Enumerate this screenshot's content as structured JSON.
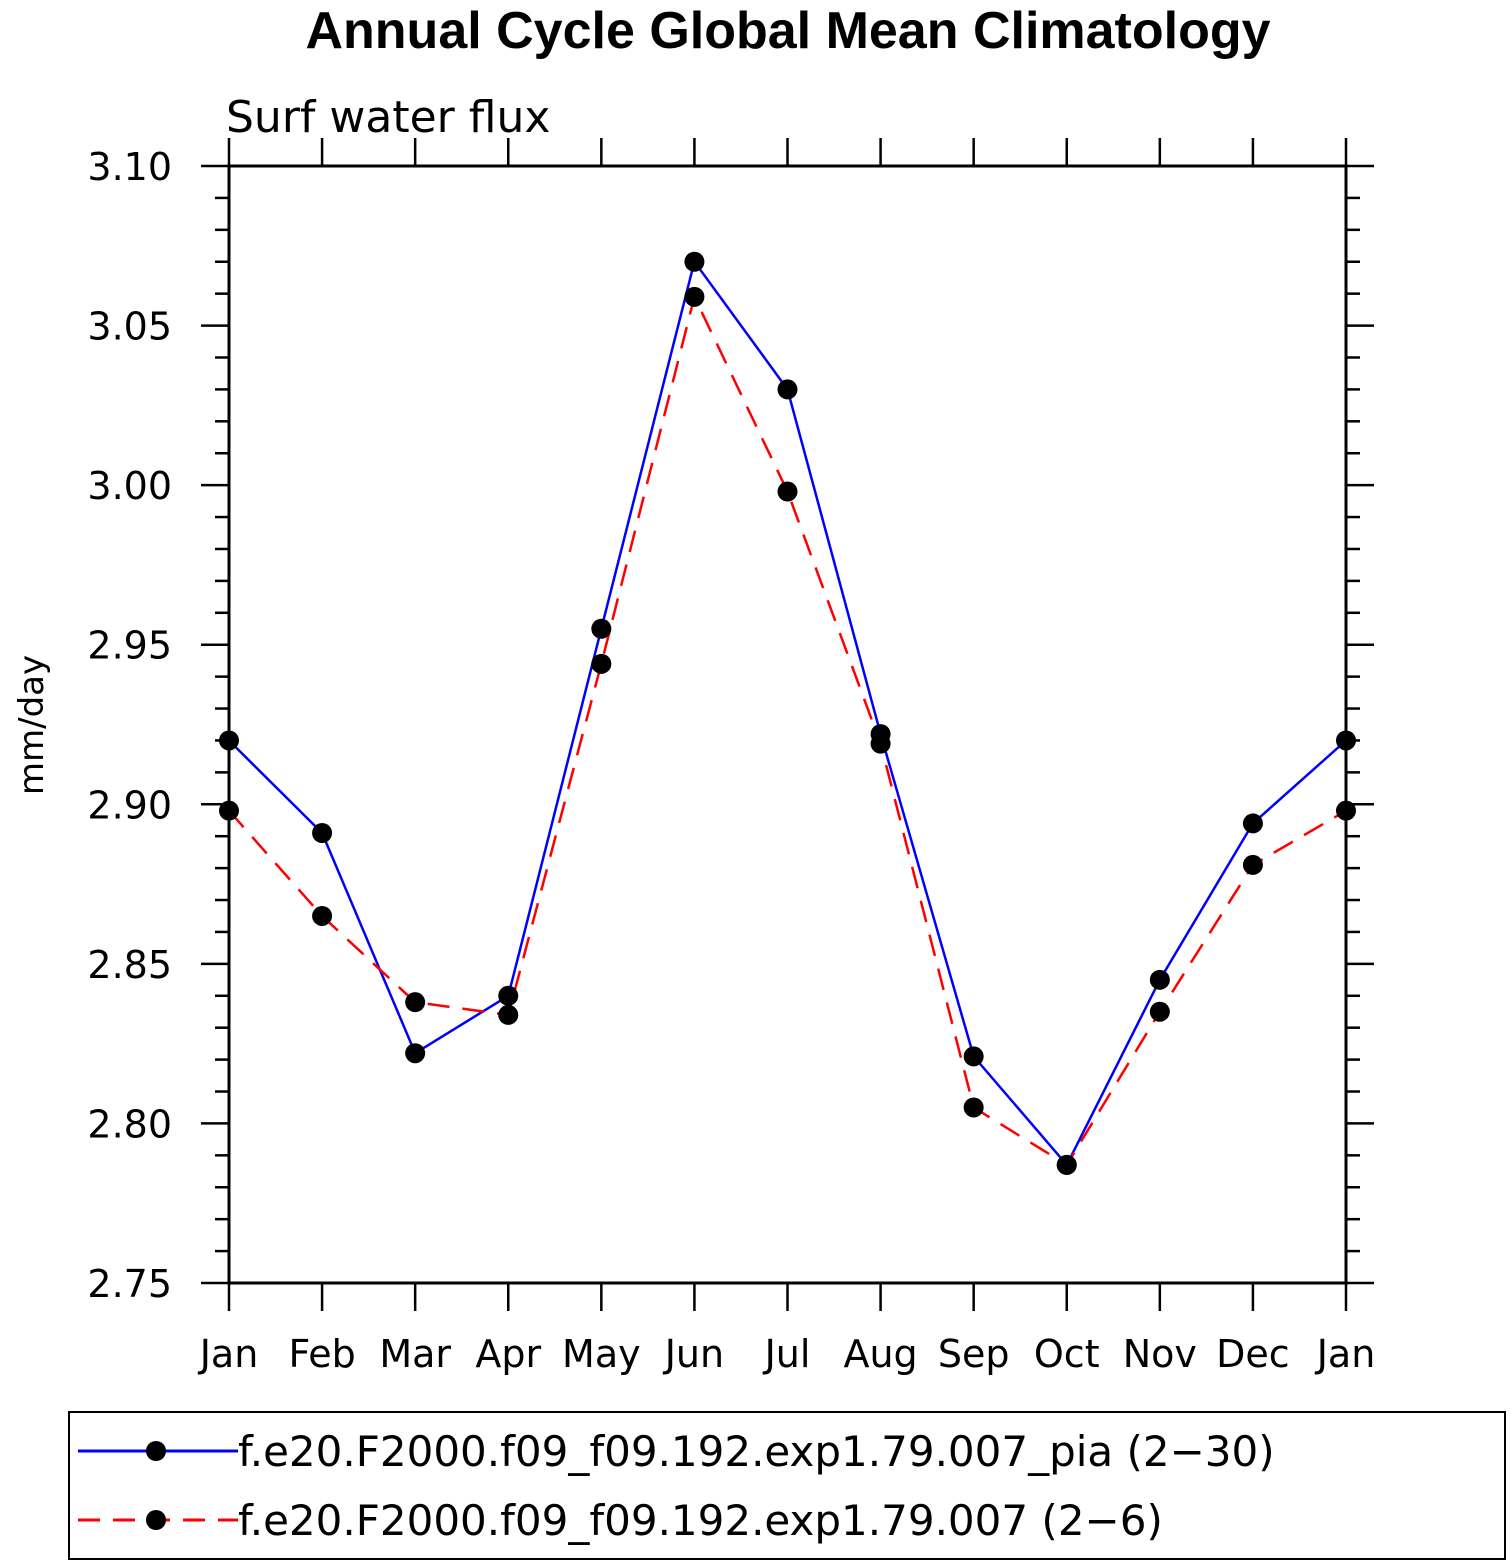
{
  "chart_data": {
    "type": "line",
    "title": "Annual Cycle Global Mean Climatology",
    "subtitle": "Surf water flux",
    "xlabel": "",
    "ylabel": "mm/day",
    "categories": [
      "Jan",
      "Feb",
      "Mar",
      "Apr",
      "May",
      "Jun",
      "Jul",
      "Aug",
      "Sep",
      "Oct",
      "Nov",
      "Dec",
      "Jan"
    ],
    "ylim": [
      2.75,
      3.1
    ],
    "yticks": [
      "2.75",
      "2.80",
      "2.85",
      "2.90",
      "2.95",
      "3.00",
      "3.05",
      "3.10"
    ],
    "grid": false,
    "legend_position": "bottom",
    "series": [
      {
        "name": "f.e20.F2000.f09_f09.192.exp1.79.007_pia (2−30)",
        "color": "#0000ff",
        "style": "solid",
        "marker": "filled-circle",
        "values": [
          2.92,
          2.891,
          2.822,
          2.84,
          2.955,
          3.07,
          3.03,
          2.922,
          2.821,
          2.787,
          2.845,
          2.894,
          2.92
        ]
      },
      {
        "name": "f.e20.F2000.f09_f09.192.exp1.79.007 (2−6)",
        "color": "#ff0000",
        "style": "dashed",
        "marker": "filled-circle",
        "values": [
          2.898,
          2.865,
          2.838,
          2.834,
          2.944,
          3.059,
          2.998,
          2.919,
          2.805,
          2.787,
          2.835,
          2.881,
          2.898
        ]
      }
    ]
  }
}
